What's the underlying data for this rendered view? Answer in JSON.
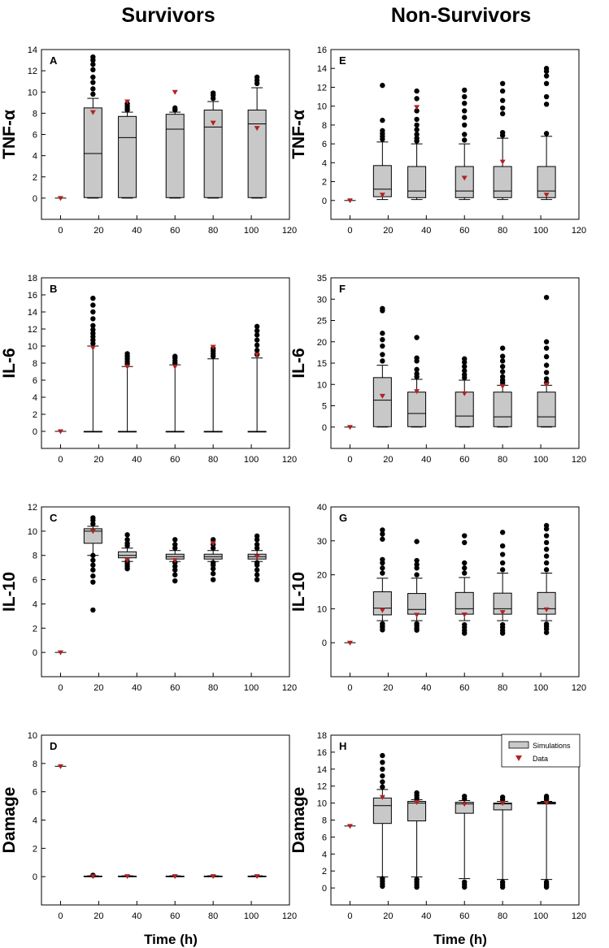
{
  "figure": {
    "column_titles": [
      "Survivors",
      "Non-Survivors"
    ],
    "x_axis_label": "Time (h)",
    "legend": {
      "simulations": "Simulations",
      "data": "Data"
    }
  },
  "colors": {
    "box_fill": "#c8c8c8",
    "outlier": "#000000",
    "data_marker": "#b22222"
  },
  "chart_data": [
    {
      "id": "A",
      "type": "box",
      "column": "Survivors",
      "ylabel": "TNF-α",
      "xlim": [
        -10,
        120
      ],
      "xticks": [
        0,
        20,
        40,
        60,
        80,
        100,
        120
      ],
      "ylim": [
        -2,
        14
      ],
      "yticks": [
        0,
        2,
        4,
        6,
        8,
        10,
        12,
        14
      ],
      "zero_point": {
        "x": 0,
        "y": 0
      },
      "boxes": [
        {
          "x": 17,
          "min": 0,
          "q1": 0.05,
          "median": 4.2,
          "q3": 8.5,
          "whisker_high": 9.4,
          "outliers": [
            9.8,
            10.3,
            10.9,
            11.4,
            12.1,
            12.6,
            13.0,
            13.3
          ],
          "data": 8.1
        },
        {
          "x": 35,
          "min": 0,
          "q1": 0.05,
          "median": 5.7,
          "q3": 7.7,
          "whisker_high": 8.1,
          "outliers": [
            8.3,
            8.5,
            8.7,
            8.9
          ],
          "data": 9.1
        },
        {
          "x": 60,
          "min": 0,
          "q1": 0.05,
          "median": 6.5,
          "q3": 7.9,
          "whisker_high": 8.1,
          "outliers": [
            8.3,
            8.5
          ],
          "data": 10.0
        },
        {
          "x": 80,
          "min": 0,
          "q1": 0.05,
          "median": 6.7,
          "q3": 8.3,
          "whisker_high": 9.1,
          "outliers": [
            9.4,
            9.7,
            9.9
          ],
          "data": 7.1
        },
        {
          "x": 103,
          "min": 0,
          "q1": 0.05,
          "median": 7.0,
          "q3": 8.3,
          "whisker_high": 10.4,
          "outliers": [
            10.8,
            11.1,
            11.4
          ],
          "data": 6.6
        }
      ]
    },
    {
      "id": "B",
      "type": "box",
      "column": "Survivors",
      "ylabel": "IL-6",
      "xlim": [
        -10,
        120
      ],
      "xticks": [
        0,
        20,
        40,
        60,
        80,
        100,
        120
      ],
      "ylim": [
        -2,
        18
      ],
      "yticks": [
        0,
        2,
        4,
        6,
        8,
        10,
        12,
        14,
        16,
        18
      ],
      "zero_point": {
        "x": 0,
        "y": 0
      },
      "boxes": [
        {
          "x": 17,
          "min": 0,
          "q1": 0,
          "median": 0,
          "q3": 0,
          "whisker_high": 10.0,
          "outliers": [
            10.3,
            10.7,
            11.1,
            11.5,
            11.9,
            12.4,
            13.2,
            14.0,
            14.8,
            15.6
          ],
          "data": 9.8
        },
        {
          "x": 35,
          "min": 0,
          "q1": 0,
          "median": 0,
          "q3": 0,
          "whisker_high": 7.6,
          "outliers": [
            7.9,
            8.2,
            8.5,
            8.8,
            9.1
          ],
          "data": 7.6
        },
        {
          "x": 60,
          "min": 0,
          "q1": 0,
          "median": 0,
          "q3": 0,
          "whisker_high": 7.8,
          "outliers": [
            8.0,
            8.3,
            8.6,
            8.8
          ],
          "data": 7.6
        },
        {
          "x": 80,
          "min": 0,
          "q1": 0,
          "median": 0,
          "q3": 0,
          "whisker_high": 8.5,
          "outliers": [
            8.8,
            9.1,
            9.4,
            9.7
          ],
          "data": 9.9
        },
        {
          "x": 103,
          "min": 0,
          "q1": 0,
          "median": 0,
          "q3": 0,
          "whisker_high": 8.6,
          "outliers": [
            9.0,
            9.5,
            10.1,
            10.7,
            11.3,
            11.8,
            12.3
          ],
          "data": 9.0
        }
      ]
    },
    {
      "id": "C",
      "type": "box",
      "column": "Survivors",
      "ylabel": "IL-10",
      "xlim": [
        -10,
        120
      ],
      "xticks": [
        0,
        20,
        40,
        60,
        80,
        100,
        120
      ],
      "ylim": [
        -2,
        12
      ],
      "yticks": [
        0,
        2,
        4,
        6,
        8,
        10,
        12
      ],
      "zero_point": {
        "x": 0,
        "y": 0
      },
      "boxes": [
        {
          "x": 17,
          "min": 8.0,
          "q1": 9.0,
          "median": 10.0,
          "q3": 10.2,
          "whisker_high": 10.4,
          "outliers": [
            3.5,
            5.8,
            6.3,
            6.8,
            7.2,
            7.6,
            8.0,
            10.6,
            10.9,
            11.1
          ],
          "data": 10.0
        },
        {
          "x": 35,
          "min": 7.5,
          "q1": 7.8,
          "median": 8.0,
          "q3": 8.3,
          "whisker_high": 8.6,
          "outliers": [
            6.9,
            7.1,
            7.3,
            7.5,
            8.8,
            9.0,
            9.3,
            9.7
          ],
          "data": 7.6
        },
        {
          "x": 60,
          "min": 7.5,
          "q1": 7.7,
          "median": 7.9,
          "q3": 8.1,
          "whisker_high": 8.4,
          "outliers": [
            5.9,
            6.4,
            6.8,
            7.1,
            7.4,
            8.6,
            8.9,
            9.3
          ],
          "data": 7.6
        },
        {
          "x": 80,
          "min": 7.5,
          "q1": 7.7,
          "median": 7.9,
          "q3": 8.1,
          "whisker_high": 8.4,
          "outliers": [
            6.0,
            6.5,
            6.9,
            7.2,
            7.4,
            8.6,
            8.9,
            9.3
          ],
          "data": 9.0
        },
        {
          "x": 103,
          "min": 7.5,
          "q1": 7.7,
          "median": 7.9,
          "q3": 8.1,
          "whisker_high": 8.4,
          "outliers": [
            6.0,
            6.4,
            6.8,
            7.2,
            7.4,
            8.6,
            8.9,
            9.3,
            9.6
          ],
          "data": 7.9
        }
      ]
    },
    {
      "id": "D",
      "type": "box",
      "column": "Survivors",
      "ylabel": "Damage",
      "xlim": [
        -10,
        120
      ],
      "xticks": [
        0,
        20,
        40,
        60,
        80,
        100,
        120
      ],
      "ylim": [
        -2,
        10
      ],
      "yticks": [
        0,
        2,
        4,
        6,
        8,
        10
      ],
      "zero_point": {
        "x": 0,
        "y": 7.8
      },
      "boxes": [
        {
          "x": 17,
          "min": 0,
          "q1": 0,
          "median": 0.02,
          "q3": 0.04,
          "whisker_high": 0.06,
          "outliers": [
            0.1
          ],
          "data": 0.03
        },
        {
          "x": 35,
          "min": 0,
          "q1": 0,
          "median": 0.02,
          "q3": 0.04,
          "whisker_high": 0.06,
          "outliers": [],
          "data": 0.03
        },
        {
          "x": 60,
          "min": 0,
          "q1": 0,
          "median": 0.02,
          "q3": 0.04,
          "whisker_high": 0.06,
          "outliers": [],
          "data": 0.03
        },
        {
          "x": 80,
          "min": 0,
          "q1": 0,
          "median": 0.02,
          "q3": 0.04,
          "whisker_high": 0.06,
          "outliers": [],
          "data": 0.03
        },
        {
          "x": 103,
          "min": 0,
          "q1": 0,
          "median": 0.02,
          "q3": 0.04,
          "whisker_high": 0.06,
          "outliers": [],
          "data": 0.03
        }
      ]
    },
    {
      "id": "E",
      "type": "box",
      "column": "Non-Survivors",
      "ylabel": "TNF-α",
      "xlim": [
        -10,
        120
      ],
      "xticks": [
        0,
        20,
        40,
        60,
        80,
        100,
        120
      ],
      "ylim": [
        -2,
        16
      ],
      "yticks": [
        0,
        2,
        4,
        6,
        8,
        10,
        12,
        14,
        16
      ],
      "zero_point": {
        "x": 0,
        "y": 0
      },
      "boxes": [
        {
          "x": 17,
          "min": 0.1,
          "q1": 0.4,
          "median": 1.2,
          "q3": 3.7,
          "whisker_high": 6.2,
          "outliers": [
            6.5,
            6.8,
            7.1,
            7.4,
            8.5,
            12.2
          ],
          "data": 0.6
        },
        {
          "x": 35,
          "min": 0.1,
          "q1": 0.3,
          "median": 1.0,
          "q3": 3.6,
          "whisker_high": 6.0,
          "outliers": [
            6.3,
            6.6,
            7.0,
            7.5,
            8.0,
            8.6,
            9.5,
            10.8,
            11.6
          ],
          "data": 9.9
        },
        {
          "x": 60,
          "min": 0.1,
          "q1": 0.3,
          "median": 1.0,
          "q3": 3.6,
          "whisker_high": 6.0,
          "outliers": [
            6.4,
            7.0,
            8.0,
            8.8,
            9.5,
            10.3,
            11.0,
            11.7
          ],
          "data": 2.4
        },
        {
          "x": 80,
          "min": 0.1,
          "q1": 0.3,
          "median": 1.0,
          "q3": 3.6,
          "whisker_high": 6.6,
          "outliers": [
            6.9,
            7.2,
            9.2,
            9.8,
            10.6,
            11.6,
            12.4
          ],
          "data": 4.1
        },
        {
          "x": 103,
          "min": 0.1,
          "q1": 0.3,
          "median": 1.0,
          "q3": 3.6,
          "whisker_high": 6.8,
          "outliers": [
            7.1,
            10.2,
            11.0,
            12.4,
            13.2,
            13.7,
            14.0
          ],
          "data": 0.6
        }
      ]
    },
    {
      "id": "F",
      "type": "box",
      "column": "Non-Survivors",
      "ylabel": "IL-6",
      "xlim": [
        -10,
        120
      ],
      "xticks": [
        0,
        20,
        40,
        60,
        80,
        100,
        120
      ],
      "ylim": [
        -5,
        35
      ],
      "yticks": [
        0,
        5,
        10,
        15,
        20,
        25,
        30,
        35
      ],
      "zero_point": {
        "x": 0,
        "y": 0
      },
      "boxes": [
        {
          "x": 17,
          "min": 0,
          "q1": 0.1,
          "median": 6.3,
          "q3": 11.6,
          "whisker_high": 14.5,
          "outliers": [
            15.5,
            17.0,
            19.0,
            20.5,
            22.0,
            27.3,
            27.8
          ],
          "data": 7.3
        },
        {
          "x": 35,
          "min": 0,
          "q1": 0.1,
          "median": 3.2,
          "q3": 8.2,
          "whisker_high": 11.2,
          "outliers": [
            11.8,
            12.5,
            13.5,
            15.5,
            16.2,
            21.0
          ],
          "data": 8.4
        },
        {
          "x": 60,
          "min": 0,
          "q1": 0.1,
          "median": 2.6,
          "q3": 8.2,
          "whisker_high": 11.0,
          "outliers": [
            11.6,
            12.3,
            13.2,
            14.2,
            15.2,
            16.0
          ],
          "data": 7.9
        },
        {
          "x": 80,
          "min": 0,
          "q1": 0.1,
          "median": 2.4,
          "q3": 8.2,
          "whisker_high": 9.8,
          "outliers": [
            10.4,
            11.0,
            11.8,
            13.0,
            14.2,
            15.5,
            16.6,
            18.5
          ],
          "data": 9.6
        },
        {
          "x": 103,
          "min": 0,
          "q1": 0.1,
          "median": 2.4,
          "q3": 8.2,
          "whisker_high": 9.8,
          "outliers": [
            10.4,
            11.3,
            12.8,
            14.5,
            16.5,
            18.5,
            20.0,
            30.4
          ],
          "data": 10.0
        }
      ]
    },
    {
      "id": "G",
      "type": "box",
      "column": "Non-Survivors",
      "ylabel": "IL-10",
      "xlim": [
        -10,
        120
      ],
      "xticks": [
        0,
        20,
        40,
        60,
        80,
        100,
        120
      ],
      "ylim": [
        -10,
        40
      ],
      "yticks": [
        0,
        10,
        20,
        30,
        40
      ],
      "zero_point": {
        "x": 0,
        "y": 0
      },
      "boxes": [
        {
          "x": 17,
          "min": 6.5,
          "q1": 8.2,
          "median": 10.2,
          "q3": 15.0,
          "whisker_high": 19.0,
          "outliers": [
            3.8,
            4.5,
            5.0,
            5.6,
            20.5,
            22.0,
            23.5,
            24.5,
            30.5,
            32.0,
            33.2
          ],
          "data": 9.6
        },
        {
          "x": 35,
          "min": 6.5,
          "q1": 8.4,
          "median": 9.8,
          "q3": 14.5,
          "whisker_high": 19.0,
          "outliers": [
            3.7,
            4.3,
            5.0,
            5.6,
            20.0,
            22.0,
            23.0,
            24.2,
            29.8
          ],
          "data": 8.2
        },
        {
          "x": 60,
          "min": 6.5,
          "q1": 8.4,
          "median": 10.0,
          "q3": 14.8,
          "whisker_high": 19.2,
          "outliers": [
            2.8,
            3.6,
            4.5,
            5.3,
            20.5,
            22.0,
            23.5,
            29.5,
            31.5
          ],
          "data": 8.3
        },
        {
          "x": 80,
          "min": 6.5,
          "q1": 8.4,
          "median": 10.0,
          "q3": 14.6,
          "whisker_high": 20.5,
          "outliers": [
            2.8,
            3.6,
            4.5,
            5.3,
            21.5,
            23.5,
            26.0,
            28.5,
            32.5
          ],
          "data": 9.0
        },
        {
          "x": 103,
          "min": 6.5,
          "q1": 8.4,
          "median": 10.0,
          "q3": 14.8,
          "whisker_high": 20.5,
          "outliers": [
            3.0,
            4.0,
            4.8,
            5.5,
            21.5,
            23.5,
            25.5,
            27.5,
            29.5,
            31.5,
            33.5,
            34.5
          ],
          "data": 9.8
        }
      ]
    },
    {
      "id": "H",
      "type": "box",
      "column": "Non-Survivors",
      "ylabel": "Damage",
      "xlim": [
        -10,
        120
      ],
      "xticks": [
        0,
        20,
        40,
        60,
        80,
        100,
        120
      ],
      "ylim": [
        -2,
        18
      ],
      "yticks": [
        0,
        2,
        4,
        6,
        8,
        10,
        12,
        14,
        16,
        18
      ],
      "zero_point": {
        "x": 0,
        "y": 7.3
      },
      "boxes": [
        {
          "x": 17,
          "min": 1.3,
          "q1": 7.6,
          "median": 9.7,
          "q3": 10.6,
          "whisker_high": 11.6,
          "outliers": [
            0.2,
            0.5,
            0.8,
            1.1,
            11.9,
            12.5,
            13.2,
            14.0,
            14.8,
            15.6
          ],
          "data": 10.7
        },
        {
          "x": 35,
          "min": 1.3,
          "q1": 7.9,
          "median": 10.0,
          "q3": 10.2,
          "whisker_high": 10.4,
          "outliers": [
            0.1,
            0.4,
            0.7,
            1.0,
            10.6,
            10.9,
            11.2
          ],
          "data": 10.1
        },
        {
          "x": 60,
          "min": 1.1,
          "q1": 8.8,
          "median": 9.9,
          "q3": 10.1,
          "whisker_high": 10.3,
          "outliers": [
            0.1,
            0.4,
            0.7,
            10.5,
            10.8
          ],
          "data": 9.9
        },
        {
          "x": 80,
          "min": 1.0,
          "q1": 9.2,
          "median": 9.9,
          "q3": 10.0,
          "whisker_high": 10.2,
          "outliers": [
            0.1,
            0.4,
            0.7,
            10.4,
            10.7
          ],
          "data": 10.0
        },
        {
          "x": 103,
          "min": 1.0,
          "q1": 9.9,
          "median": 10.0,
          "q3": 10.1,
          "whisker_high": 10.2,
          "outliers": [
            0.1,
            0.3,
            0.5,
            0.7,
            10.4,
            10.6,
            10.8
          ],
          "data": 10.0
        }
      ]
    }
  ]
}
